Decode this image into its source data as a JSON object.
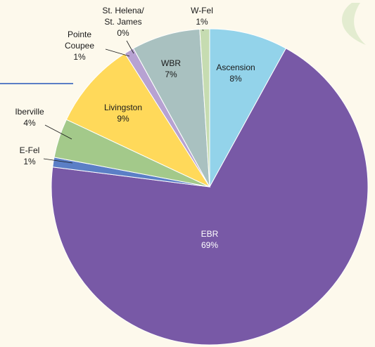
{
  "chart_data": {
    "type": "pie",
    "categories": [
      "Ascension",
      "EBR",
      "E-Fel",
      "Iberville",
      "Livingston",
      "Pointe Coupee",
      "St. Helena/ St. James",
      "WBR",
      "W-Fel"
    ],
    "values": [
      8,
      69,
      1,
      4,
      9,
      1,
      0,
      7,
      1
    ],
    "value_labels": [
      "8%",
      "69%",
      "1%",
      "4%",
      "9%",
      "1%",
      "0%",
      "7%",
      "1%"
    ],
    "colors": [
      "#93d3ea",
      "#7859a6",
      "#5b7fc6",
      "#a3c98a",
      "#ffd95a",
      "#b7a2d2",
      "#9c83c2",
      "#a9c1c0",
      "#c6dcb1"
    ]
  }
}
